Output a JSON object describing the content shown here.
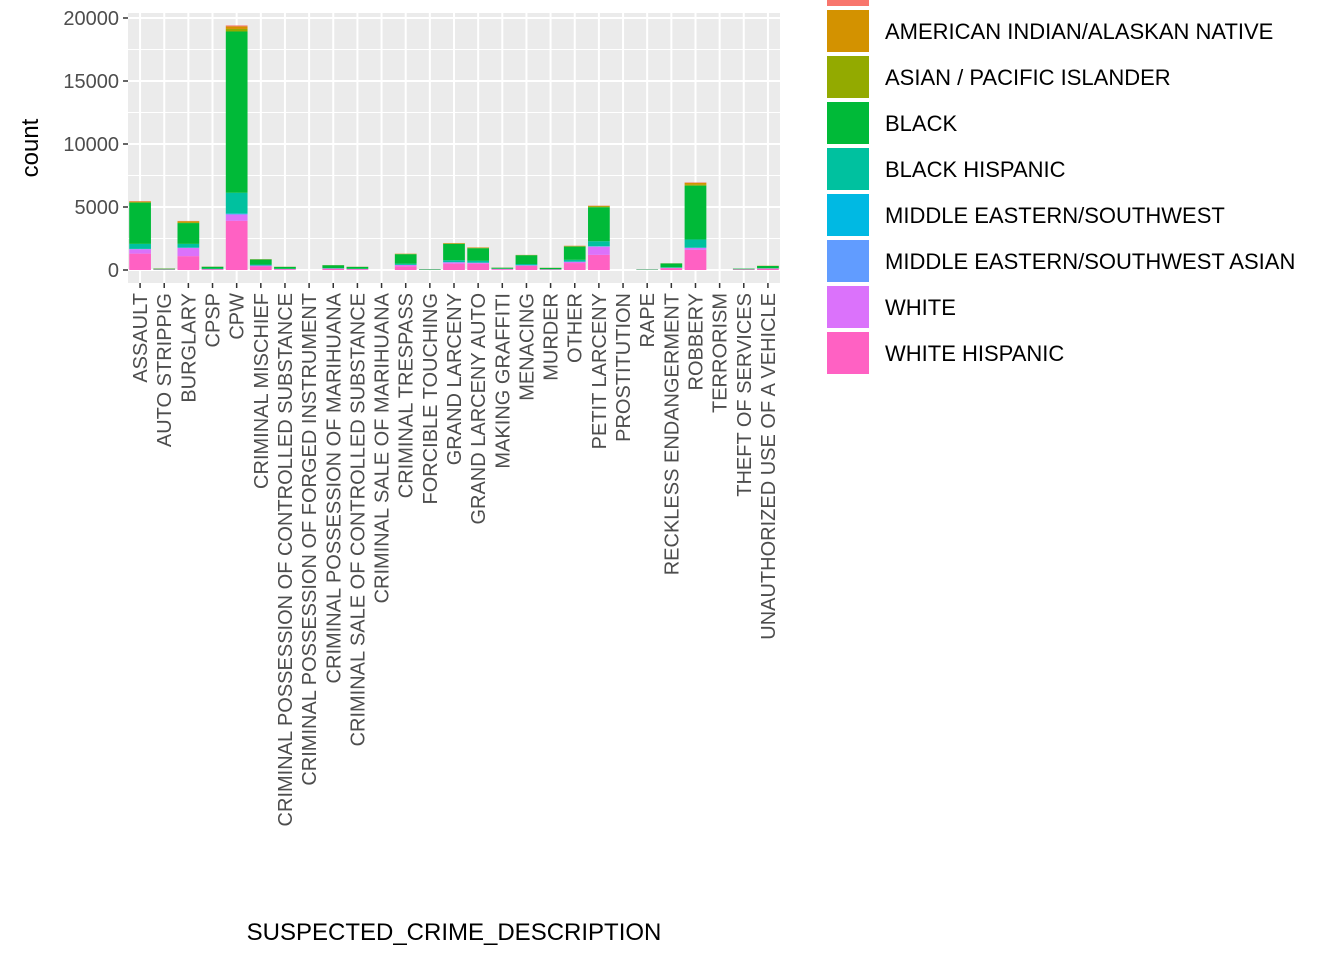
{
  "chart_data": {
    "type": "bar",
    "stacked": true,
    "xlabel": "SUSPECTED_CRIME_DESCRIPTION",
    "ylabel": "count",
    "ylim": [
      0,
      20000
    ],
    "y_ticks": [
      0,
      5000,
      10000,
      15000,
      20000
    ],
    "y_tick_labels": [
      "0",
      "5000",
      "10000",
      "15000",
      "20000"
    ],
    "grid": true,
    "legend_position": "right",
    "categories": [
      "ASSAULT",
      "AUTO STRIPPIG",
      "BURGLARY",
      "CPSP",
      "CPW",
      "CRIMINAL MISCHIEF",
      "CRIMINAL POSSESSION OF CONTROLLED SUBSTANCE",
      "CRIMINAL POSSESSION OF FORGED INSTRUMENT",
      "CRIMINAL POSSESSION OF MARIHUANA",
      "CRIMINAL SALE OF CONTROLLED SUBSTANCE",
      "CRIMINAL SALE OF MARIHUANA",
      "CRIMINAL TRESPASS",
      "FORCIBLE TOUCHING",
      "GRAND LARCENY",
      "GRAND LARCENY AUTO",
      "MAKING GRAFFITI",
      "MENACING",
      "MURDER",
      "OTHER",
      "PETIT LARCENY",
      "PROSTITUTION",
      "RAPE",
      "RECKLESS ENDANGERMENT",
      "ROBBERY",
      "TERRORISM",
      "THEFT OF SERVICES",
      "UNAUTHORIZED USE OF A VEHICLE"
    ],
    "series": [
      {
        "name": "",
        "color": "#F8766D",
        "values": [
          30,
          5,
          20,
          5,
          80,
          5,
          2,
          0,
          2,
          2,
          0,
          5,
          0,
          10,
          10,
          2,
          5,
          2,
          10,
          20,
          0,
          0,
          2,
          30,
          0,
          0,
          2
        ]
      },
      {
        "name": "AMERICAN INDIAN/ALASKAN NATIVE",
        "color": "#D39200",
        "values": [
          40,
          5,
          100,
          5,
          200,
          10,
          5,
          0,
          5,
          5,
          0,
          20,
          0,
          30,
          30,
          5,
          10,
          5,
          30,
          50,
          0,
          0,
          5,
          150,
          0,
          0,
          10
        ]
      },
      {
        "name": "ASIAN / PACIFIC ISLANDER",
        "color": "#93AA00",
        "values": [
          60,
          5,
          50,
          5,
          200,
          10,
          5,
          0,
          5,
          5,
          0,
          20,
          0,
          30,
          30,
          5,
          10,
          5,
          30,
          60,
          0,
          0,
          5,
          80,
          0,
          0,
          10
        ]
      },
      {
        "name": "BLACK",
        "color": "#00BA38",
        "values": [
          3270,
          60,
          1650,
          150,
          12800,
          400,
          150,
          0,
          230,
          150,
          0,
          750,
          40,
          1300,
          1000,
          80,
          700,
          100,
          1050,
          2700,
          0,
          30,
          300,
          4270,
          0,
          50,
          180
        ]
      },
      {
        "name": "BLACK HISPANIC",
        "color": "#00C19F",
        "values": [
          400,
          10,
          300,
          40,
          1650,
          80,
          20,
          0,
          30,
          20,
          0,
          100,
          5,
          150,
          150,
          15,
          100,
          20,
          150,
          400,
          0,
          5,
          50,
          650,
          0,
          10,
          20
        ]
      },
      {
        "name": "MIDDLE EASTERN/SOUTHWEST",
        "color": "#00B9E3",
        "values": [
          5,
          0,
          5,
          0,
          20,
          0,
          0,
          0,
          0,
          0,
          0,
          0,
          0,
          5,
          0,
          0,
          0,
          0,
          0,
          5,
          0,
          0,
          0,
          5,
          0,
          0,
          0
        ]
      },
      {
        "name": "MIDDLE EASTERN/SOUTHWEST ASIAN",
        "color": "#619CFF",
        "values": [
          20,
          0,
          20,
          0,
          60,
          5,
          0,
          0,
          0,
          0,
          0,
          5,
          0,
          20,
          10,
          0,
          5,
          0,
          10,
          30,
          0,
          0,
          0,
          20,
          0,
          0,
          0
        ]
      },
      {
        "name": "WHITE",
        "color": "#DB72FB",
        "values": [
          350,
          10,
          650,
          10,
          500,
          70,
          20,
          0,
          20,
          20,
          0,
          100,
          5,
          100,
          70,
          30,
          50,
          10,
          100,
          650,
          0,
          5,
          20,
          150,
          0,
          10,
          20
        ]
      },
      {
        "name": "WHITE HISPANIC",
        "color": "#FF61C3",
        "values": [
          1300,
          30,
          1100,
          60,
          3900,
          280,
          60,
          0,
          100,
          60,
          0,
          300,
          20,
          500,
          500,
          60,
          320,
          40,
          550,
          1200,
          0,
          20,
          150,
          1600,
          0,
          40,
          100
        ]
      }
    ]
  }
}
